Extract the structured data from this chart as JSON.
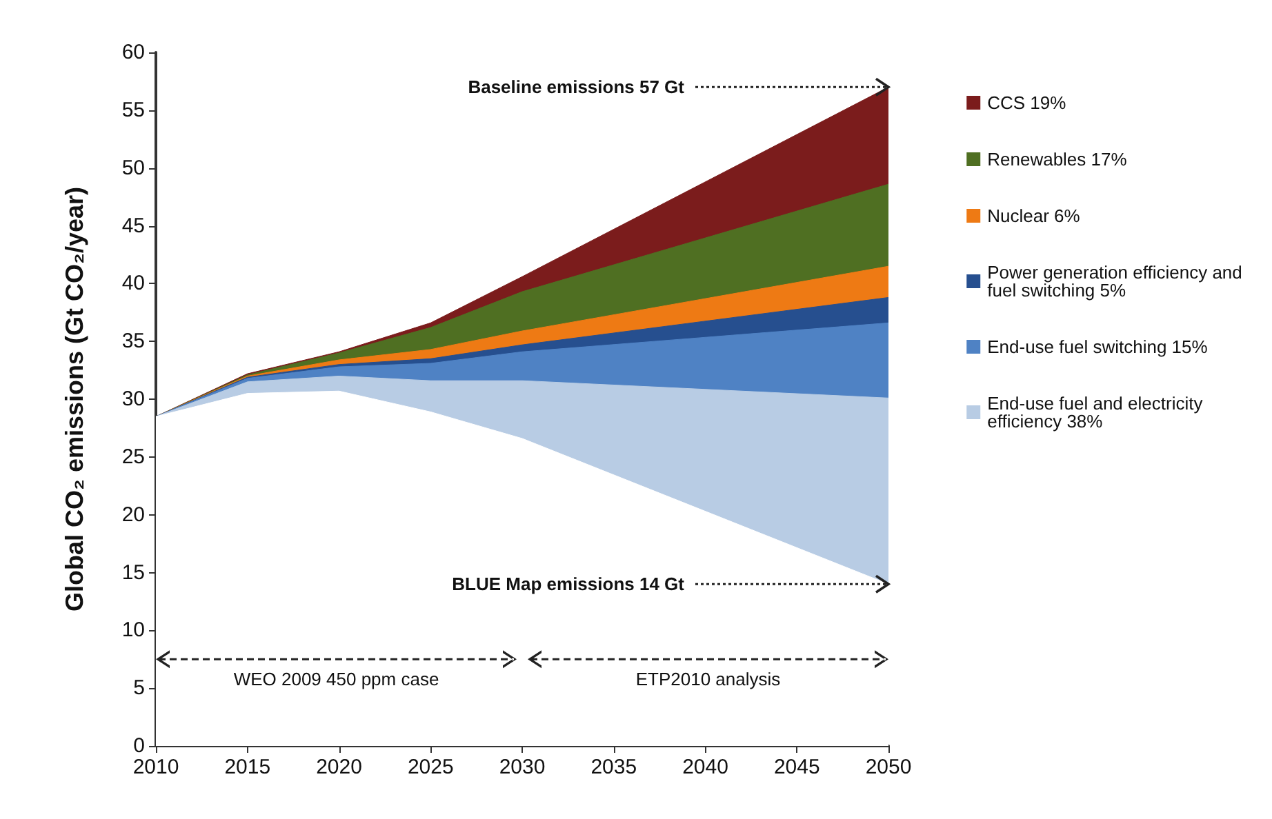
{
  "chart_data": {
    "type": "area",
    "stacked": true,
    "ylabel": "Global CO₂ emissions (Gt CO₂/year)",
    "x": [
      2010,
      2015,
      2020,
      2025,
      2030,
      2050
    ],
    "series": [
      {
        "color": "#ffffff",
        "values": [
          28.5,
          30.5,
          30.7,
          28.9,
          26.6,
          14
        ]
      },
      {
        "name": "End-use fuel and electricity efficiency 38%",
        "color": "#b8cce4",
        "values": [
          0,
          1.0,
          1.3,
          2.7,
          5.0,
          16.1
        ]
      },
      {
        "name": "End-use fuel switching 15%",
        "color": "#4f82c4",
        "values": [
          0,
          0.3,
          0.8,
          1.5,
          2.5,
          6.5
        ]
      },
      {
        "name": "Power generation efficiency and fuel switching 5%",
        "color": "#264f8f",
        "values": [
          0,
          0.1,
          0.2,
          0.4,
          0.6,
          2.2
        ]
      },
      {
        "name": "Nuclear 6%",
        "color": "#ee7a14",
        "values": [
          0,
          0.1,
          0.4,
          0.8,
          1.2,
          2.7
        ]
      },
      {
        "name": "Renewables 17%",
        "color": "#4f6f22",
        "values": [
          0,
          0.1,
          0.6,
          1.9,
          3.4,
          7.1
        ]
      },
      {
        "name": "CCS 19%",
        "color": "#7b1c1c",
        "values": [
          0,
          0.1,
          0.1,
          0.4,
          1.3,
          8.4
        ]
      }
    ],
    "annotations": [
      {
        "text": "Baseline emissions 57 Gt",
        "x": 2050,
        "y": 57
      },
      {
        "text": "BLUE Map emissions 14 Gt",
        "x": 2050,
        "y": 14
      },
      "WEO 2009 450 ppm case",
      "ETP2010 analysis"
    ],
    "xlim": [
      2010,
      2050
    ],
    "xticks": [
      2010,
      2015,
      2020,
      2025,
      2030,
      2035,
      2040,
      2045,
      2050
    ],
    "ylim": [
      0,
      60
    ],
    "yticks": [
      0,
      5,
      10,
      15,
      20,
      25,
      30,
      35,
      40,
      45,
      50,
      55,
      60
    ],
    "grid": false,
    "legend": "right"
  }
}
